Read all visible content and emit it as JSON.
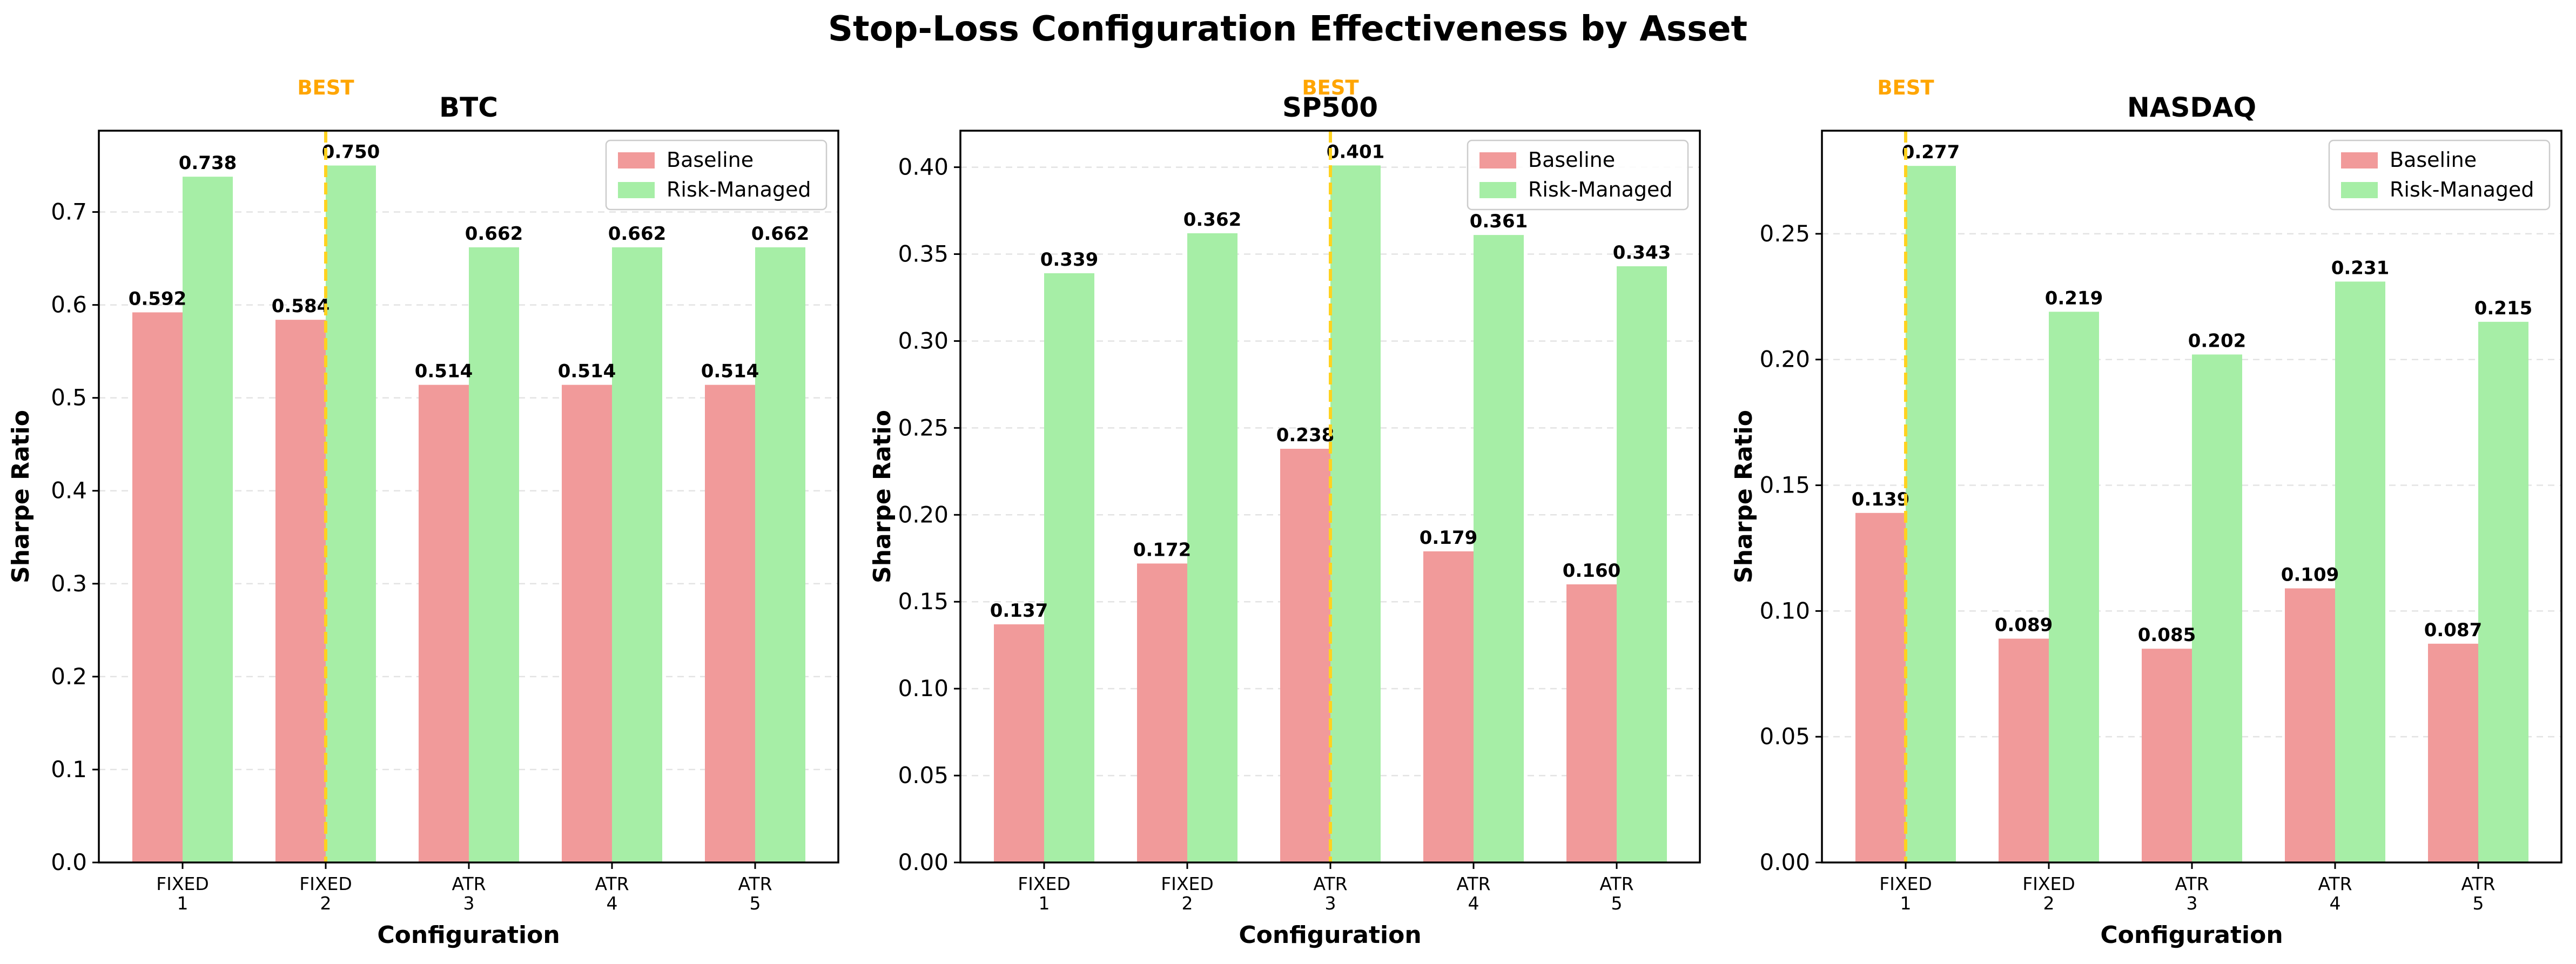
{
  "figure": {
    "title": "Stop-Loss Configuration Effectiveness by Asset"
  },
  "colors": {
    "baseline": "#f19a9a",
    "risk_managed": "#a6eea6",
    "best_line": "#ffd21f",
    "best_label": "#ffa500",
    "grid": "#e3e3e3",
    "axis": "#000000"
  },
  "chart_data": [
    {
      "type": "bar",
      "title": "BTC",
      "xlabel": "Configuration",
      "ylabel": "Sharpe Ratio",
      "categories": [
        [
          "FIXED",
          "1"
        ],
        [
          "FIXED",
          "2"
        ],
        [
          "ATR",
          "3"
        ],
        [
          "ATR",
          "4"
        ],
        [
          "ATR",
          "5"
        ]
      ],
      "series": [
        {
          "name": "Baseline",
          "values": [
            0.592,
            0.584,
            0.514,
            0.514,
            0.514
          ],
          "labels": [
            "0.592",
            "0.584",
            "0.514",
            "0.514",
            "0.514"
          ]
        },
        {
          "name": "Risk-Managed",
          "values": [
            0.738,
            0.75,
            0.662,
            0.662,
            0.662
          ],
          "labels": [
            "0.738",
            "0.750",
            "0.662",
            "0.662",
            "0.662"
          ]
        }
      ],
      "ylim": [
        0,
        0.7875
      ],
      "yticks": [
        0.0,
        0.1,
        0.2,
        0.3,
        0.4,
        0.5,
        0.6,
        0.7
      ],
      "ytick_labels": [
        "0.0",
        "0.1",
        "0.2",
        "0.3",
        "0.4",
        "0.5",
        "0.6",
        "0.7"
      ],
      "best_index": 1,
      "best_label": "BEST",
      "legend": "top-right",
      "grid": "y-dashed"
    },
    {
      "type": "bar",
      "title": "SP500",
      "xlabel": "Configuration",
      "ylabel": "Sharpe Ratio",
      "categories": [
        [
          "FIXED",
          "1"
        ],
        [
          "FIXED",
          "2"
        ],
        [
          "ATR",
          "3"
        ],
        [
          "ATR",
          "4"
        ],
        [
          "ATR",
          "5"
        ]
      ],
      "series": [
        {
          "name": "Baseline",
          "values": [
            0.137,
            0.172,
            0.238,
            0.179,
            0.16
          ],
          "labels": [
            "0.137",
            "0.172",
            "0.238",
            "0.179",
            "0.160"
          ]
        },
        {
          "name": "Risk-Managed",
          "values": [
            0.339,
            0.362,
            0.401,
            0.361,
            0.343
          ],
          "labels": [
            "0.339",
            "0.362",
            "0.401",
            "0.361",
            "0.343"
          ]
        }
      ],
      "ylim": [
        0,
        0.421
      ],
      "yticks": [
        0.0,
        0.05,
        0.1,
        0.15,
        0.2,
        0.25,
        0.3,
        0.35,
        0.4
      ],
      "ytick_labels": [
        "0.00",
        "0.05",
        "0.10",
        "0.15",
        "0.20",
        "0.25",
        "0.30",
        "0.35",
        "0.40"
      ],
      "best_index": 2,
      "best_label": "BEST",
      "legend": "top-right",
      "grid": "y-dashed"
    },
    {
      "type": "bar",
      "title": "NASDAQ",
      "xlabel": "Configuration",
      "ylabel": "Sharpe Ratio",
      "categories": [
        [
          "FIXED",
          "1"
        ],
        [
          "FIXED",
          "2"
        ],
        [
          "ATR",
          "3"
        ],
        [
          "ATR",
          "4"
        ],
        [
          "ATR",
          "5"
        ]
      ],
      "series": [
        {
          "name": "Baseline",
          "values": [
            0.139,
            0.089,
            0.085,
            0.109,
            0.087
          ],
          "labels": [
            "0.139",
            "0.089",
            "0.085",
            "0.109",
            "0.087"
          ]
        },
        {
          "name": "Risk-Managed",
          "values": [
            0.277,
            0.219,
            0.202,
            0.231,
            0.215
          ],
          "labels": [
            "0.277",
            "0.219",
            "0.202",
            "0.231",
            "0.215"
          ]
        }
      ],
      "ylim": [
        0,
        0.291
      ],
      "yticks": [
        0.0,
        0.05,
        0.1,
        0.15,
        0.2,
        0.25
      ],
      "ytick_labels": [
        "0.00",
        "0.05",
        "0.10",
        "0.15",
        "0.20",
        "0.25"
      ],
      "best_index": 0,
      "best_label": "BEST",
      "legend": "top-right",
      "grid": "y-dashed"
    }
  ]
}
